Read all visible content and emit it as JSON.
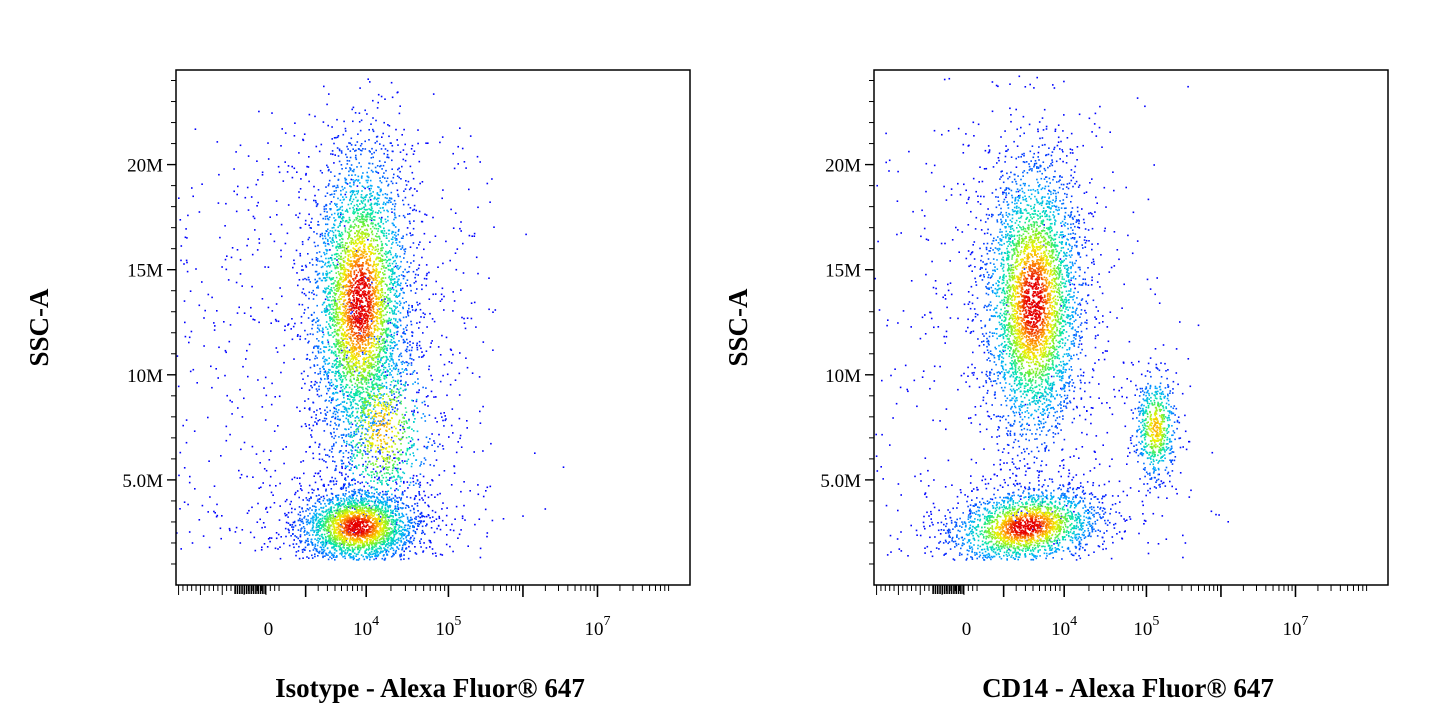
{
  "chart_data": [
    {
      "type": "scatter",
      "xlabel": "Isotype - Alexa Fluor® 647",
      "ylabel": "SSC-A",
      "x_scale": "biexponential",
      "ylim": [
        0,
        24500000
      ],
      "y_ticks": [
        {
          "value": 5000000,
          "label": "5.0M"
        },
        {
          "value": 10000000,
          "label": "10M"
        },
        {
          "value": 15000000,
          "label": "15M"
        },
        {
          "value": 20000000,
          "label": "20M"
        }
      ],
      "x_ticks": [
        {
          "value": 0,
          "label": "0"
        },
        {
          "value": 10000,
          "label": "10",
          "exp": "4"
        },
        {
          "value": 100000,
          "label": "10",
          "exp": "5"
        },
        {
          "value": 10000000,
          "label": "10",
          "exp": "7"
        }
      ],
      "populations": [
        {
          "name": "",
          "center_x": 8500,
          "center_y": 13500000,
          "count": 4200
        },
        {
          "name": "",
          "center_x": 8000,
          "center_y": 2800000,
          "count": 2600
        },
        {
          "name": "",
          "center_x": 15000,
          "center_y": 7500000,
          "count": 900
        }
      ],
      "grid": false
    },
    {
      "type": "scatter",
      "xlabel": "CD14 - Alexa Fluor® 647",
      "ylabel": "SSC-A",
      "x_scale": "biexponential",
      "ylim": [
        0,
        24500000
      ],
      "y_ticks": [
        {
          "value": 5000000,
          "label": "5.0M"
        },
        {
          "value": 10000000,
          "label": "10M"
        },
        {
          "value": 15000000,
          "label": "15M"
        },
        {
          "value": 20000000,
          "label": "20M"
        }
      ],
      "x_ticks": [
        {
          "value": 0,
          "label": "0"
        },
        {
          "value": 10000,
          "label": "10",
          "exp": "4"
        },
        {
          "value": 100000,
          "label": "10",
          "exp": "5"
        },
        {
          "value": 10000000,
          "label": "10",
          "exp": "7"
        }
      ],
      "populations": [
        {
          "name": "",
          "center_x": 4000,
          "center_y": 13500000,
          "count": 4200
        },
        {
          "name": "",
          "center_x": 3000,
          "center_y": 2800000,
          "count": 2300
        },
        {
          "name": "",
          "center_x": 130000,
          "center_y": 7500000,
          "count": 650
        }
      ],
      "grid": false
    }
  ]
}
